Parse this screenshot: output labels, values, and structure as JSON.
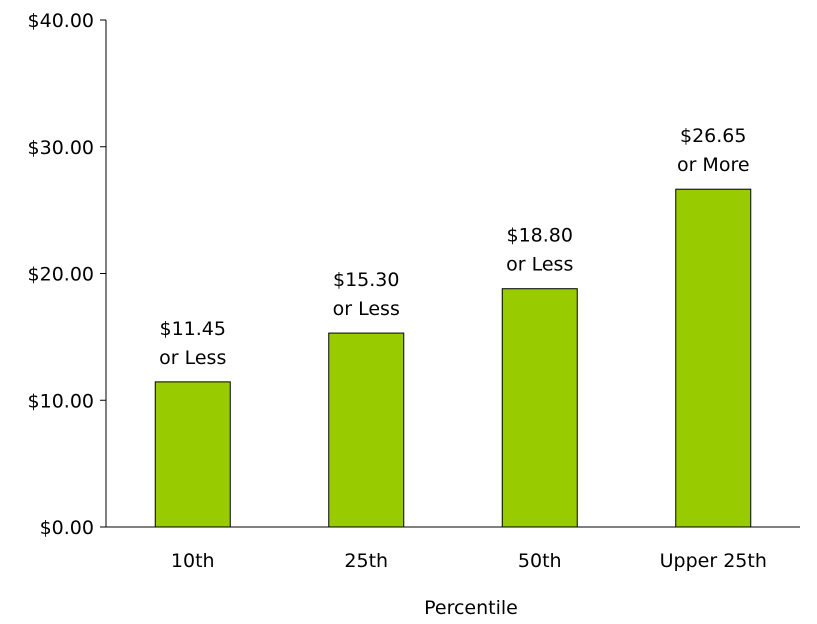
{
  "chart_data": {
    "type": "bar",
    "title": "",
    "xlabel": "Percentile",
    "ylabel": "",
    "ylim": [
      0,
      40
    ],
    "yticks": [
      0,
      10,
      20,
      30,
      40
    ],
    "ytick_labels": [
      "$0.00",
      "$10.00",
      "$20.00",
      "$30.00",
      "$40.00"
    ],
    "categories": [
      "10th",
      "25th",
      "50th",
      "Upper 25th"
    ],
    "values": [
      11.45,
      15.3,
      18.8,
      26.65
    ],
    "data_labels": [
      [
        "$11.45",
        "or Less"
      ],
      [
        "$15.30",
        "or Less"
      ],
      [
        "$18.80",
        "or Less"
      ],
      [
        "$26.65",
        "or More"
      ]
    ],
    "grid": false,
    "bar_color": "#99cc00",
    "bar_edge_color": "#000000"
  }
}
